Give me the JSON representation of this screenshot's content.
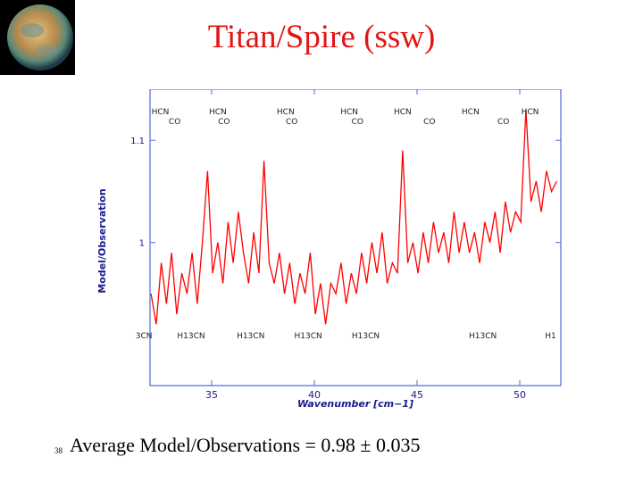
{
  "slide": {
    "title": "Titan/Spire (ssw)",
    "footer": "Average Model/Observations = 0.98 ± 0.035",
    "slide_number": "38",
    "thumbnail": "titan-planet-image"
  },
  "colors": {
    "title": "#e31414",
    "series": "#ff0000",
    "axis": "#4d6bd6",
    "label": "#1a1a8c"
  },
  "chart_data": {
    "type": "line",
    "title": "",
    "xlabel": "Wavenumber [cm−1]",
    "ylabel": "Model/Observation",
    "xlim": [
      32,
      52
    ],
    "ylim": [
      0.86,
      1.15
    ],
    "x_ticks": [
      35,
      40,
      45,
      50
    ],
    "y_ticks": [
      1,
      1.1
    ],
    "y_tick_labels": [
      "1",
      "1.1"
    ],
    "grid": false,
    "series": [
      {
        "color": "#ff0000",
        "points": [
          [
            32.05,
            0.95
          ],
          [
            32.3,
            0.92
          ],
          [
            32.55,
            0.98
          ],
          [
            32.8,
            0.94
          ],
          [
            33.05,
            0.99
          ],
          [
            33.3,
            0.93
          ],
          [
            33.55,
            0.97
          ],
          [
            33.8,
            0.95
          ],
          [
            34.05,
            0.99
          ],
          [
            34.3,
            0.94
          ],
          [
            34.55,
            1.0
          ],
          [
            34.8,
            1.07
          ],
          [
            35.05,
            0.97
          ],
          [
            35.3,
            1.0
          ],
          [
            35.55,
            0.96
          ],
          [
            35.8,
            1.02
          ],
          [
            36.05,
            0.98
          ],
          [
            36.3,
            1.03
          ],
          [
            36.55,
            0.99
          ],
          [
            36.8,
            0.96
          ],
          [
            37.05,
            1.01
          ],
          [
            37.3,
            0.97
          ],
          [
            37.55,
            1.08
          ],
          [
            37.8,
            0.98
          ],
          [
            38.05,
            0.96
          ],
          [
            38.3,
            0.99
          ],
          [
            38.55,
            0.95
          ],
          [
            38.8,
            0.98
          ],
          [
            39.05,
            0.94
          ],
          [
            39.3,
            0.97
          ],
          [
            39.55,
            0.95
          ],
          [
            39.8,
            0.99
          ],
          [
            40.05,
            0.93
          ],
          [
            40.3,
            0.96
          ],
          [
            40.55,
            0.92
          ],
          [
            40.8,
            0.96
          ],
          [
            41.05,
            0.95
          ],
          [
            41.3,
            0.98
          ],
          [
            41.55,
            0.94
          ],
          [
            41.8,
            0.97
          ],
          [
            42.05,
            0.95
          ],
          [
            42.3,
            0.99
          ],
          [
            42.55,
            0.96
          ],
          [
            42.8,
            1.0
          ],
          [
            43.05,
            0.97
          ],
          [
            43.3,
            1.01
          ],
          [
            43.55,
            0.96
          ],
          [
            43.8,
            0.98
          ],
          [
            44.05,
            0.97
          ],
          [
            44.3,
            1.09
          ],
          [
            44.55,
            0.98
          ],
          [
            44.8,
            1.0
          ],
          [
            45.05,
            0.97
          ],
          [
            45.3,
            1.01
          ],
          [
            45.55,
            0.98
          ],
          [
            45.8,
            1.02
          ],
          [
            46.05,
            0.99
          ],
          [
            46.3,
            1.01
          ],
          [
            46.55,
            0.98
          ],
          [
            46.8,
            1.03
          ],
          [
            47.05,
            0.99
          ],
          [
            47.3,
            1.02
          ],
          [
            47.55,
            0.99
          ],
          [
            47.8,
            1.01
          ],
          [
            48.05,
            0.98
          ],
          [
            48.3,
            1.02
          ],
          [
            48.55,
            1.0
          ],
          [
            48.8,
            1.03
          ],
          [
            49.05,
            0.99
          ],
          [
            49.3,
            1.04
          ],
          [
            49.55,
            1.01
          ],
          [
            49.8,
            1.03
          ],
          [
            50.05,
            1.02
          ],
          [
            50.3,
            1.13
          ],
          [
            50.55,
            1.04
          ],
          [
            50.8,
            1.06
          ],
          [
            51.05,
            1.03
          ],
          [
            51.3,
            1.07
          ],
          [
            51.55,
            1.05
          ],
          [
            51.8,
            1.06
          ]
        ]
      }
    ],
    "annotations_top_row1": [
      {
        "text": "HCN",
        "x": 32.5
      },
      {
        "text": "HCN",
        "x": 35.3
      },
      {
        "text": "HCN",
        "x": 38.6
      },
      {
        "text": "HCN",
        "x": 41.7
      },
      {
        "text": "HCN",
        "x": 44.3
      },
      {
        "text": "HCN",
        "x": 47.6
      },
      {
        "text": "HCN",
        "x": 50.5
      }
    ],
    "annotations_top_row2": [
      {
        "text": "CO",
        "x": 33.2
      },
      {
        "text": "CO",
        "x": 35.6
      },
      {
        "text": "CO",
        "x": 38.9
      },
      {
        "text": "CO",
        "x": 42.1
      },
      {
        "text": "CO",
        "x": 45.6
      },
      {
        "text": "CO",
        "x": 49.2
      }
    ],
    "annotations_bottom": [
      {
        "text": "3CN",
        "x": 31.7
      },
      {
        "text": "H13CN",
        "x": 34.0
      },
      {
        "text": "H13CN",
        "x": 36.9
      },
      {
        "text": "H13CN",
        "x": 39.7
      },
      {
        "text": "H13CN",
        "x": 42.5
      },
      {
        "text": "H13CN",
        "x": 48.2
      },
      {
        "text": "H1",
        "x": 51.5
      }
    ]
  }
}
